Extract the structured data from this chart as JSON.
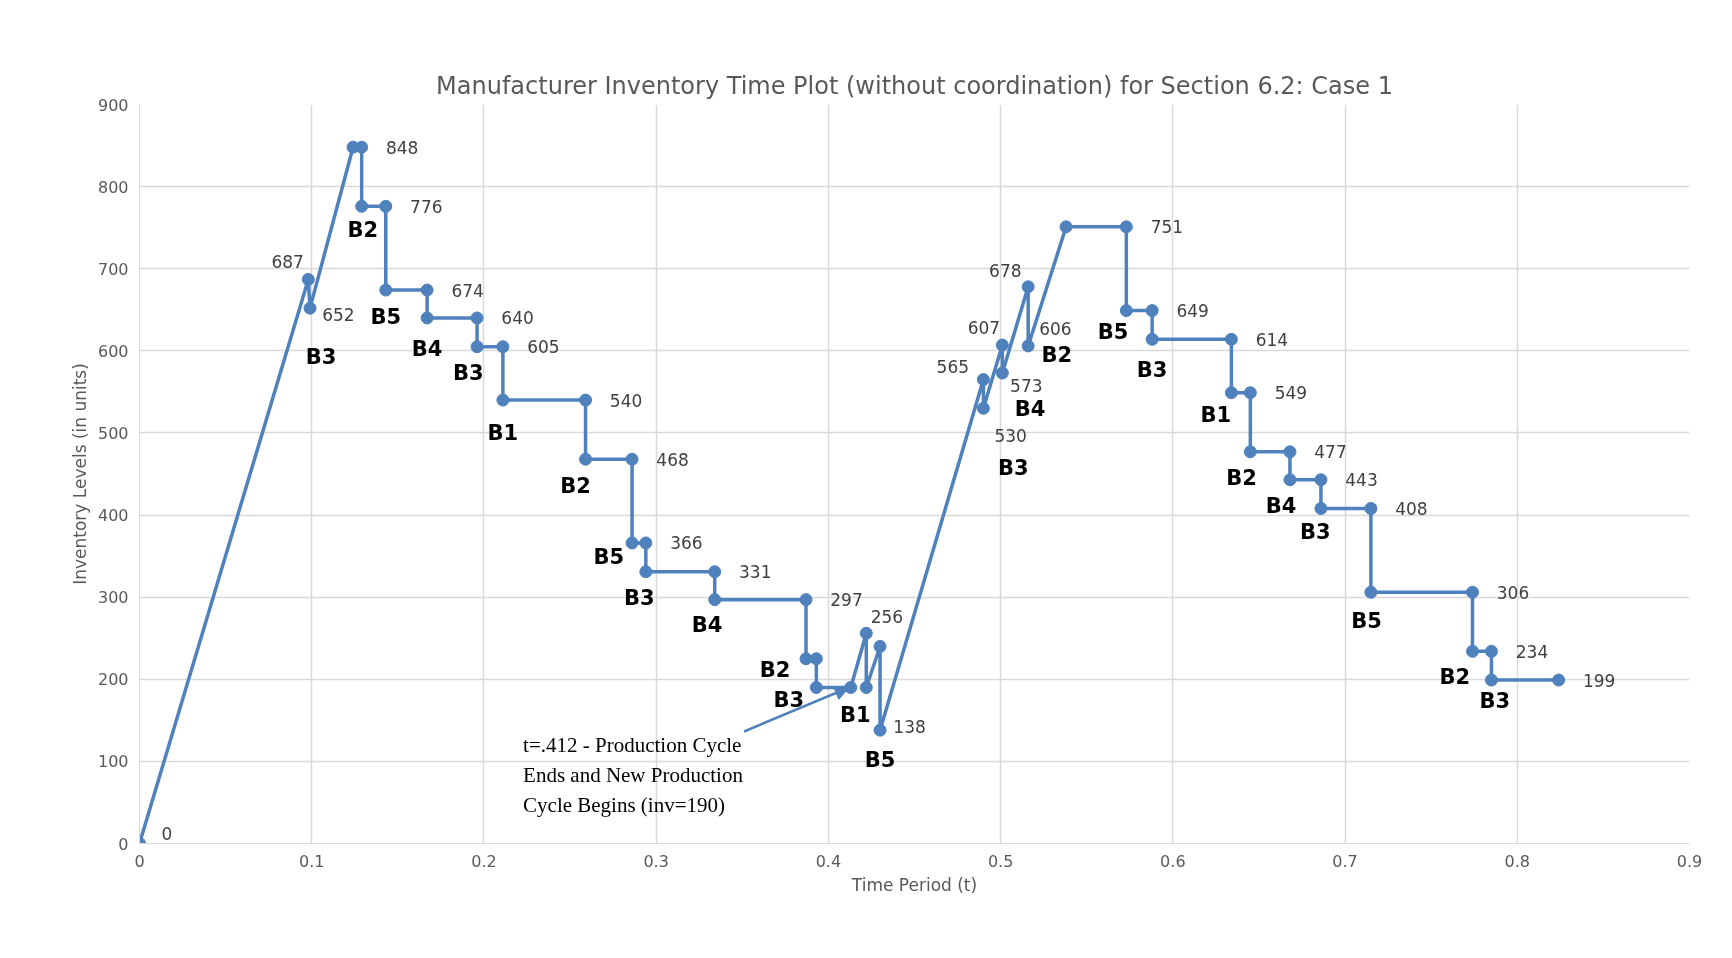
{
  "chart_data": {
    "type": "line",
    "title": "Manufacturer Inventory Time Plot (without coordination) for Section 6.2: Case 1",
    "xlabel": "Time Period (t)",
    "ylabel": "Inventory Levels (in units)",
    "xlim": [
      0,
      0.9
    ],
    "xticks": [
      0,
      0.1,
      0.2,
      0.3,
      0.4,
      0.5,
      0.6,
      0.7,
      0.8,
      0.9
    ],
    "ylim": [
      0,
      900
    ],
    "yticks": [
      0,
      100,
      200,
      300,
      400,
      500,
      600,
      700,
      800,
      900
    ],
    "grid": true,
    "marker": "circle",
    "line_style": "solid",
    "series": [
      {
        "color": "#4f81bd",
        "x": [
          0,
          0.098,
          0.099,
          0.124,
          0.129,
          0.129,
          0.143,
          0.143,
          0.167,
          0.167,
          0.196,
          0.196,
          0.211,
          0.211,
          0.259,
          0.259,
          0.286,
          0.286,
          0.294,
          0.294,
          0.334,
          0.334,
          0.387,
          0.387,
          0.393,
          0.393,
          0.413,
          0.422,
          0.422,
          0.43,
          0.43,
          0.49,
          0.49,
          0.501,
          0.501,
          0.516,
          0.516,
          0.538,
          0.573,
          0.573,
          0.588,
          0.588,
          0.634,
          0.634,
          0.645,
          0.645,
          0.668,
          0.668,
          0.686,
          0.686,
          0.715,
          0.715,
          0.774,
          0.774,
          0.785,
          0.785,
          0.824
        ],
        "values": [
          0,
          687,
          652,
          848,
          848,
          776,
          776,
          674,
          674,
          640,
          640,
          605,
          605,
          540,
          540,
          468,
          468,
          366,
          366,
          331,
          331,
          297,
          297,
          225,
          225,
          190,
          190,
          256,
          190,
          240,
          138,
          565,
          530,
          607,
          573,
          678,
          606,
          751,
          751,
          649,
          649,
          614,
          614,
          549,
          549,
          477,
          477,
          443,
          443,
          408,
          408,
          306,
          306,
          234,
          234,
          199,
          199
        ],
        "value_labels": [
          "0",
          "687",
          "652",
          null,
          "848",
          null,
          "776",
          null,
          "674",
          null,
          "640",
          null,
          "605",
          null,
          "540",
          null,
          "468",
          null,
          "366",
          null,
          "331",
          null,
          "297",
          null,
          null,
          null,
          null,
          "256",
          null,
          null,
          "138",
          "565",
          "530",
          "607",
          "573",
          "678",
          "606",
          null,
          "751",
          null,
          "649",
          null,
          "614",
          null,
          "549",
          null,
          "477",
          null,
          "443",
          null,
          "408",
          null,
          "306",
          null,
          "234",
          null,
          "199"
        ]
      }
    ],
    "annotations": [
      {
        "text": "B3",
        "x": 0.099,
        "y": 652
      },
      {
        "text": "B2",
        "x": 0.129,
        "y": 776
      },
      {
        "text": "B5",
        "x": 0.143,
        "y": 674
      },
      {
        "text": "B4",
        "x": 0.167,
        "y": 640
      },
      {
        "text": "B3",
        "x": 0.196,
        "y": 605
      },
      {
        "text": "B1",
        "x": 0.211,
        "y": 540
      },
      {
        "text": "B2",
        "x": 0.259,
        "y": 468
      },
      {
        "text": "B5",
        "x": 0.286,
        "y": 366
      },
      {
        "text": "B3",
        "x": 0.294,
        "y": 331
      },
      {
        "text": "B4",
        "x": 0.334,
        "y": 297
      },
      {
        "text": "B2",
        "x": 0.387,
        "y": 225
      },
      {
        "text": "B3",
        "x": 0.393,
        "y": 190
      },
      {
        "text": "B1",
        "x": 0.422,
        "y": 190
      },
      {
        "text": "B5",
        "x": 0.43,
        "y": 138
      },
      {
        "text": "B3",
        "x": 0.49,
        "y": 530
      },
      {
        "text": "B4",
        "x": 0.501,
        "y": 573
      },
      {
        "text": "B2",
        "x": 0.516,
        "y": 606
      },
      {
        "text": "B5",
        "x": 0.573,
        "y": 649
      },
      {
        "text": "B3",
        "x": 0.588,
        "y": 614
      },
      {
        "text": "B1",
        "x": 0.634,
        "y": 549
      },
      {
        "text": "B2",
        "x": 0.645,
        "y": 477
      },
      {
        "text": "B4",
        "x": 0.668,
        "y": 443
      },
      {
        "text": "B3",
        "x": 0.686,
        "y": 408
      },
      {
        "text": "B5",
        "x": 0.715,
        "y": 306
      },
      {
        "text": "B2",
        "x": 0.774,
        "y": 234
      },
      {
        "text": "B3",
        "x": 0.785,
        "y": 199
      },
      {
        "text": "t=.412 - Production Cycle Ends and New Production Cycle Begins (inv=190)",
        "x": 0.412,
        "y": 190
      }
    ]
  }
}
